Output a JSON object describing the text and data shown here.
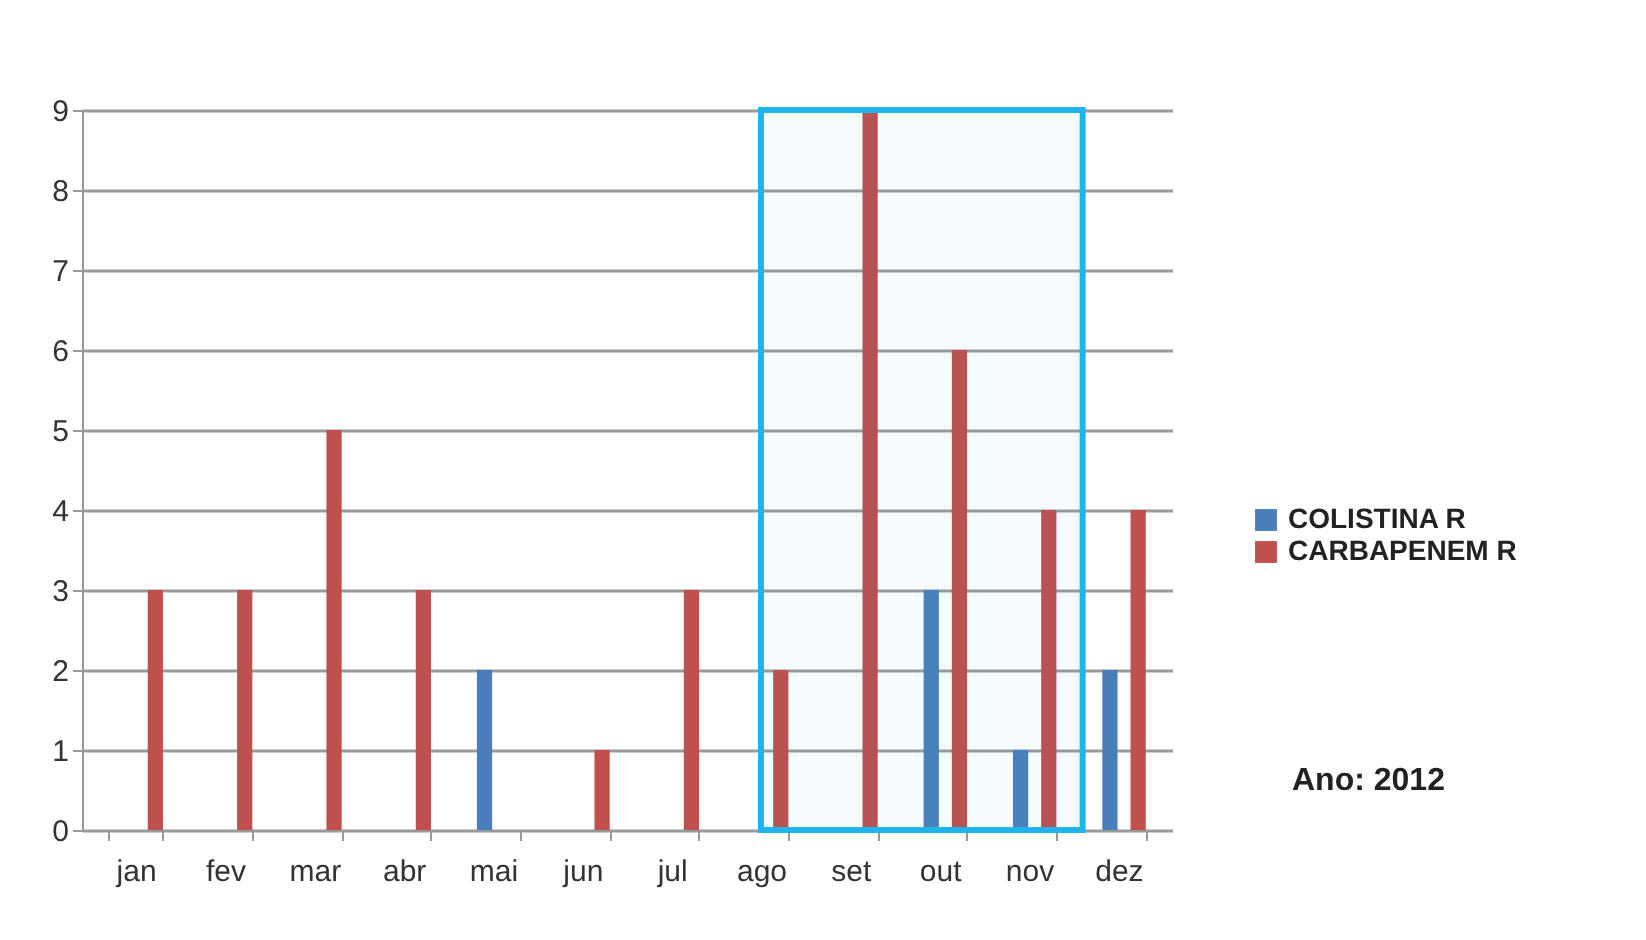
{
  "chart_data": {
    "type": "bar",
    "categories": [
      "jan",
      "fev",
      "mar",
      "abr",
      "mai",
      "jun",
      "jul",
      "ago",
      "set",
      "out",
      "nov",
      "dez"
    ],
    "series": [
      {
        "name": "COLISTINA R",
        "color": "#4a7ebb",
        "values": [
          0,
          0,
          0,
          0,
          2,
          0,
          0,
          0,
          0,
          3,
          1,
          2
        ]
      },
      {
        "name": "CARBAPENEM R",
        "color": "#c0504d",
        "values": [
          3,
          3,
          5,
          3,
          0,
          1,
          3,
          2,
          9,
          6,
          4,
          4
        ]
      }
    ],
    "ylim": [
      0,
      9
    ],
    "yticks": [
      0,
      1,
      2,
      3,
      4,
      5,
      6,
      7,
      8,
      9
    ],
    "grid": "y",
    "legend": "right",
    "bands": [
      {
        "axis": "x",
        "from": "ago",
        "to": "nov",
        "color": "#1fb4ea"
      }
    ],
    "annotations": [
      "Ano: 2012"
    ]
  }
}
